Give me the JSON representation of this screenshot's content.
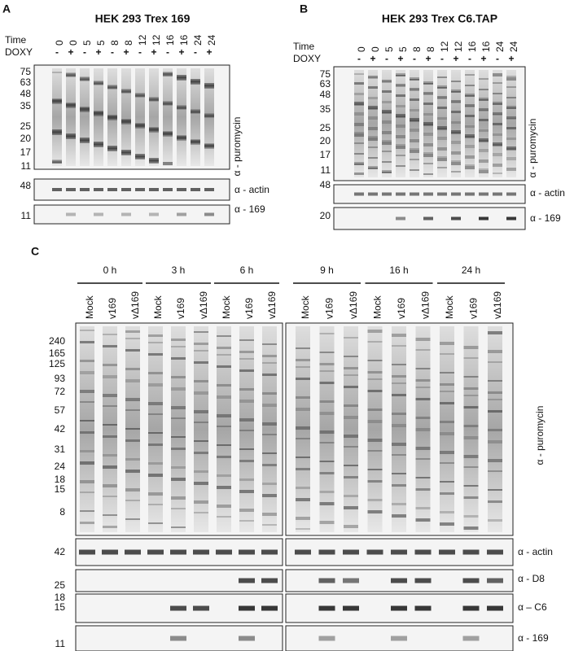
{
  "panel_a": {
    "letter": "A",
    "title": "HEK 293 Trex 169",
    "time_label": "Time",
    "doxy_label": "DOXY",
    "times": [
      "0",
      "0",
      "5",
      "5",
      "8",
      "8",
      "12",
      "12",
      "16",
      "16",
      "24",
      "24"
    ],
    "doxy": [
      "-",
      "+",
      "-",
      "+",
      "-",
      "+",
      "-",
      "+",
      "-",
      "+",
      "-",
      "+"
    ],
    "markers": [
      "75",
      "63",
      "48",
      "35",
      "25",
      "20",
      "17",
      "11"
    ],
    "main_label": "α - puromycin",
    "blots": [
      {
        "marker": "48",
        "label": "α - actin"
      },
      {
        "marker": "11",
        "label": "α - 169"
      }
    ]
  },
  "panel_b": {
    "letter": "B",
    "title": "HEK 293 Trex C6.TAP",
    "time_label": "Time",
    "doxy_label": "DOXY",
    "times": [
      "0",
      "0",
      "5",
      "5",
      "8",
      "8",
      "12",
      "12",
      "16",
      "16",
      "24",
      "24"
    ],
    "doxy": [
      "-",
      "+",
      "-",
      "+",
      "-",
      "+",
      "-",
      "+",
      "-",
      "+",
      "-",
      "+"
    ],
    "markers": [
      "75",
      "63",
      "48",
      "35",
      "25",
      "20",
      "17",
      "11"
    ],
    "main_label": "α - puromycin",
    "blots": [
      {
        "marker": "48",
        "label": "α - actin"
      },
      {
        "marker": "20",
        "label": "α - 169"
      }
    ]
  },
  "panel_c": {
    "letter": "C",
    "groups": [
      "0 h",
      "3 h",
      "6 h",
      "9 h",
      "16 h",
      "24 h"
    ],
    "lanes": [
      "Mock",
      "v169",
      "vΔ169"
    ],
    "markers": [
      "240",
      "165",
      "125",
      "93",
      "72",
      "57",
      "42",
      "31",
      "24",
      "18",
      "15",
      "8"
    ],
    "main_label": "α - puromycin",
    "blots": [
      {
        "markers": [
          "42"
        ],
        "label": "α - actin"
      },
      {
        "markers": [
          "25"
        ],
        "label": "α - D8"
      },
      {
        "markers": [
          "18",
          "15"
        ],
        "label": "α – C6"
      },
      {
        "markers": [
          "11"
        ],
        "label": "α - 169"
      }
    ]
  }
}
